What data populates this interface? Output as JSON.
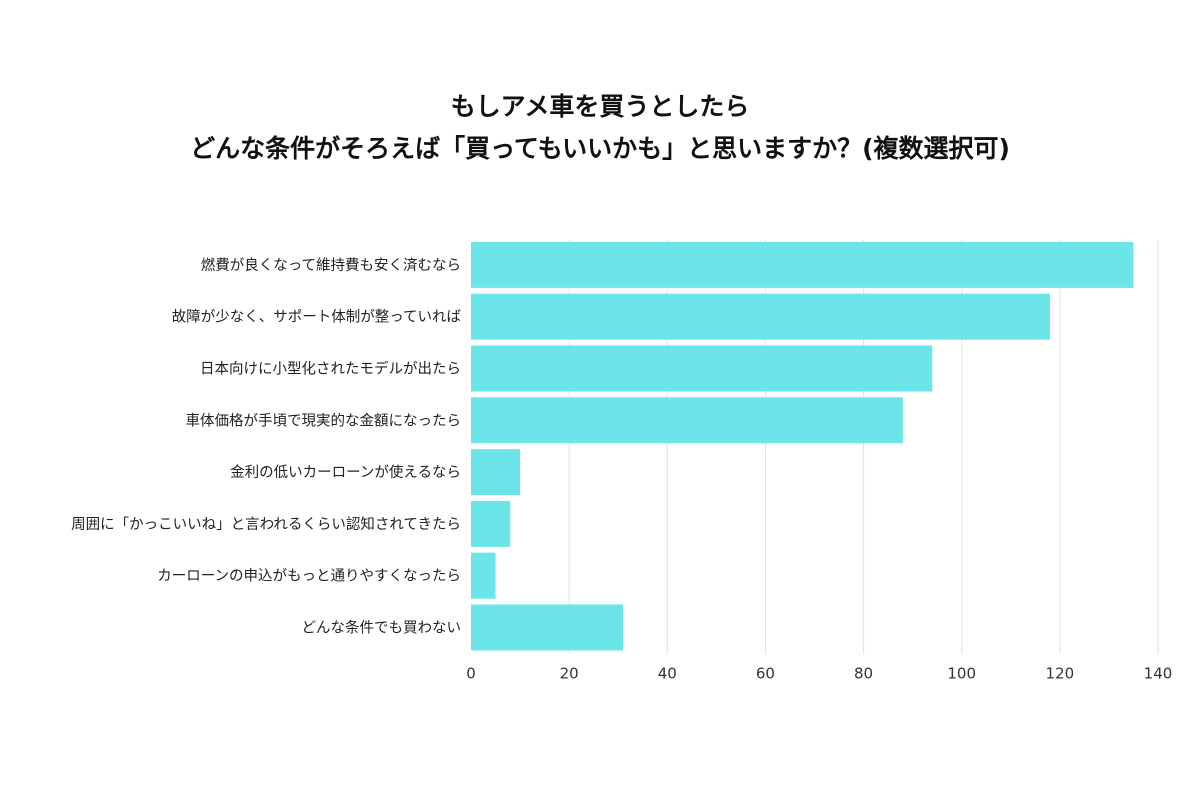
{
  "title_lines": [
    "もしアメ車を買うとしたら",
    "どんな条件がそろえば「買ってもいいかも」と思いますか？(複数選択可)"
  ],
  "chart_data": {
    "type": "bar",
    "orientation": "horizontal",
    "categories": [
      "燃費が良くなって維持費も安く済むなら",
      "故障が少なく、サポート体制が整っていれば",
      "日本向けに小型化されたモデルが出たら",
      "車体価格が手頃で現実的な金額になったら",
      "金利の低いカーローンが使えるなら",
      "周囲に「かっこいいね」と言われるくらい認知されてきたら",
      "カーローンの申込がもっと通りやすくなったら",
      "どんな条件でも買わない"
    ],
    "values": [
      135,
      118,
      94,
      88,
      10,
      8,
      5,
      31
    ],
    "xlim": [
      0,
      140
    ],
    "xticks": [
      0,
      20,
      40,
      60,
      80,
      100,
      120,
      140
    ],
    "grid": true,
    "bar_color": "#6ce5e8",
    "grid_color": "#e3e3e3"
  }
}
